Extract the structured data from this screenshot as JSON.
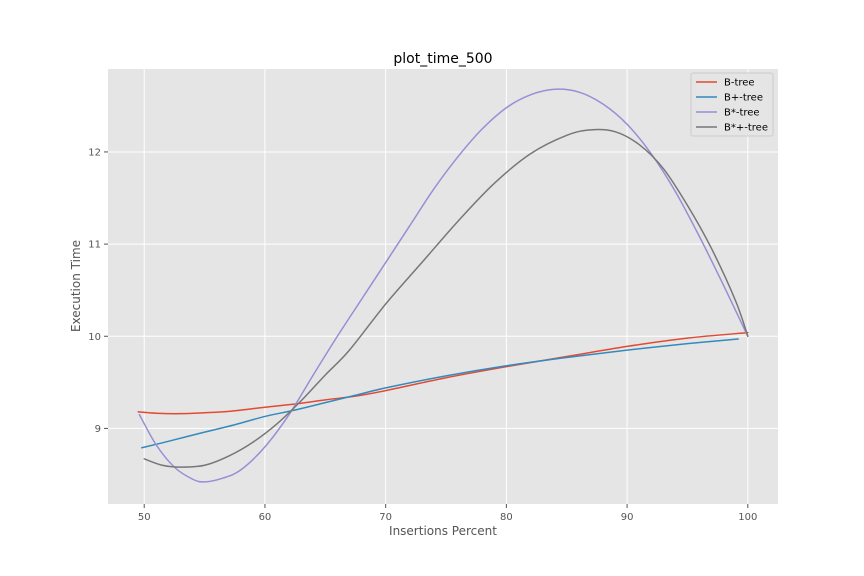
{
  "chart_data": {
    "type": "line",
    "title": "plot_time_500",
    "xlabel": "Insertions Percent",
    "ylabel": "Execution Time",
    "xlim": [
      47,
      102.5
    ],
    "ylim": [
      8.18,
      12.9
    ],
    "xticks": [
      50,
      60,
      70,
      80,
      90,
      100
    ],
    "yticks": [
      9,
      10,
      11,
      12
    ],
    "grid": true,
    "legend_position": "top-right",
    "background": "#e5e5e5",
    "series": [
      {
        "name": "B-tree",
        "color": "#e24a33",
        "points": [
          [
            49.5,
            9.18
          ],
          [
            51,
            9.165
          ],
          [
            53,
            9.16
          ],
          [
            55,
            9.17
          ],
          [
            57,
            9.185
          ],
          [
            60,
            9.23
          ],
          [
            62.5,
            9.265
          ],
          [
            65,
            9.31
          ],
          [
            67.5,
            9.35
          ],
          [
            70,
            9.41
          ],
          [
            75,
            9.55
          ],
          [
            80,
            9.67
          ],
          [
            85,
            9.78
          ],
          [
            90,
            9.89
          ],
          [
            95,
            9.98
          ],
          [
            100,
            10.04
          ]
        ]
      },
      {
        "name": "B+-tree",
        "color": "#348abd",
        "points": [
          [
            49.8,
            8.79
          ],
          [
            52,
            8.86
          ],
          [
            55,
            8.96
          ],
          [
            57.5,
            9.04
          ],
          [
            60,
            9.13
          ],
          [
            62.5,
            9.2
          ],
          [
            65,
            9.28
          ],
          [
            67.5,
            9.36
          ],
          [
            70,
            9.44
          ],
          [
            75,
            9.57
          ],
          [
            80,
            9.68
          ],
          [
            85,
            9.77
          ],
          [
            90,
            9.85
          ],
          [
            95,
            9.92
          ],
          [
            99.2,
            9.97
          ]
        ]
      },
      {
        "name": "B*-tree",
        "color": "#988ed5",
        "points": [
          [
            49.6,
            9.15
          ],
          [
            51,
            8.82
          ],
          [
            52.5,
            8.58
          ],
          [
            54,
            8.45
          ],
          [
            55,
            8.42
          ],
          [
            56.5,
            8.46
          ],
          [
            58,
            8.55
          ],
          [
            60,
            8.8
          ],
          [
            62,
            9.15
          ],
          [
            64,
            9.58
          ],
          [
            66,
            10.0
          ],
          [
            68,
            10.4
          ],
          [
            70,
            10.8
          ],
          [
            72,
            11.2
          ],
          [
            74,
            11.6
          ],
          [
            76,
            11.95
          ],
          [
            78,
            12.25
          ],
          [
            80,
            12.48
          ],
          [
            82,
            12.62
          ],
          [
            84,
            12.68
          ],
          [
            86,
            12.65
          ],
          [
            88,
            12.52
          ],
          [
            90,
            12.3
          ],
          [
            92,
            11.98
          ],
          [
            94,
            11.57
          ],
          [
            96,
            11.08
          ],
          [
            98,
            10.55
          ],
          [
            100,
            10.0
          ]
        ]
      },
      {
        "name": "B*+-tree",
        "color": "#777777",
        "points": [
          [
            50,
            8.67
          ],
          [
            51.5,
            8.6
          ],
          [
            53,
            8.58
          ],
          [
            55,
            8.6
          ],
          [
            57,
            8.7
          ],
          [
            59,
            8.85
          ],
          [
            61,
            9.05
          ],
          [
            63,
            9.3
          ],
          [
            65,
            9.58
          ],
          [
            67,
            9.85
          ],
          [
            70,
            10.35
          ],
          [
            73,
            10.8
          ],
          [
            76,
            11.25
          ],
          [
            79,
            11.66
          ],
          [
            82,
            11.98
          ],
          [
            85,
            12.18
          ],
          [
            87,
            12.24
          ],
          [
            89,
            12.22
          ],
          [
            91,
            12.08
          ],
          [
            93,
            11.82
          ],
          [
            95,
            11.42
          ],
          [
            97,
            10.95
          ],
          [
            99,
            10.38
          ],
          [
            100,
            10.0
          ]
        ]
      }
    ]
  }
}
